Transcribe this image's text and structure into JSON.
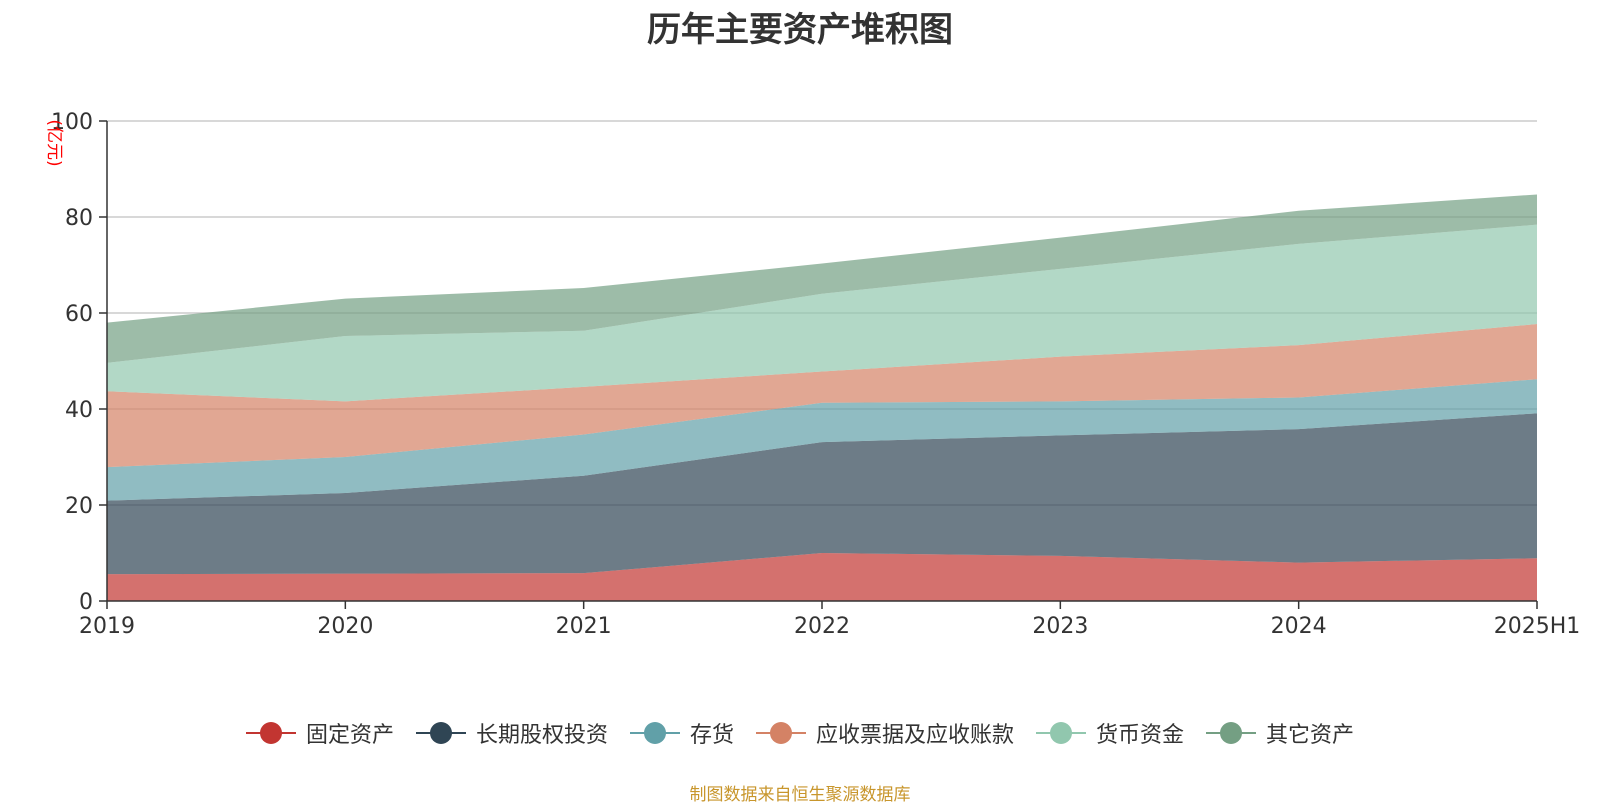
{
  "chart_data": {
    "type": "area",
    "stacked": true,
    "title": "历年主要资产堆积图",
    "unit_label": "(亿元)",
    "x": [
      "2019",
      "2020",
      "2021",
      "2022",
      "2023",
      "2024",
      "2025H1"
    ],
    "ylim": [
      0,
      100
    ],
    "yticks": [
      0,
      20,
      40,
      60,
      80,
      100
    ],
    "grid": true,
    "legend_position": "bottom",
    "series": [
      {
        "name": "固定资产",
        "color": "#c23531",
        "values": [
          5.6,
          5.7,
          5.8,
          10.0,
          9.4,
          8.0,
          8.9
        ]
      },
      {
        "name": "长期股权投资",
        "color": "#2f4554",
        "values": [
          15.3,
          16.8,
          20.3,
          23.1,
          25.1,
          27.8,
          30.2
        ]
      },
      {
        "name": "存货",
        "color": "#61a0a8",
        "values": [
          7.0,
          7.5,
          8.6,
          8.2,
          7.1,
          6.6,
          7.1
        ]
      },
      {
        "name": "应收票据及应收账款",
        "color": "#d48265",
        "values": [
          15.8,
          11.6,
          9.9,
          6.5,
          9.3,
          10.9,
          11.5
        ]
      },
      {
        "name": "货币资金",
        "color": "#91c7ae",
        "values": [
          5.9,
          13.6,
          11.7,
          16.2,
          18.3,
          21.1,
          20.7
        ]
      },
      {
        "name": "其它资产",
        "color": "#749f83",
        "values": [
          8.4,
          7.8,
          8.9,
          6.3,
          6.5,
          6.9,
          6.3
        ]
      }
    ],
    "source_note": "制图数据来自恒生聚源数据库"
  }
}
